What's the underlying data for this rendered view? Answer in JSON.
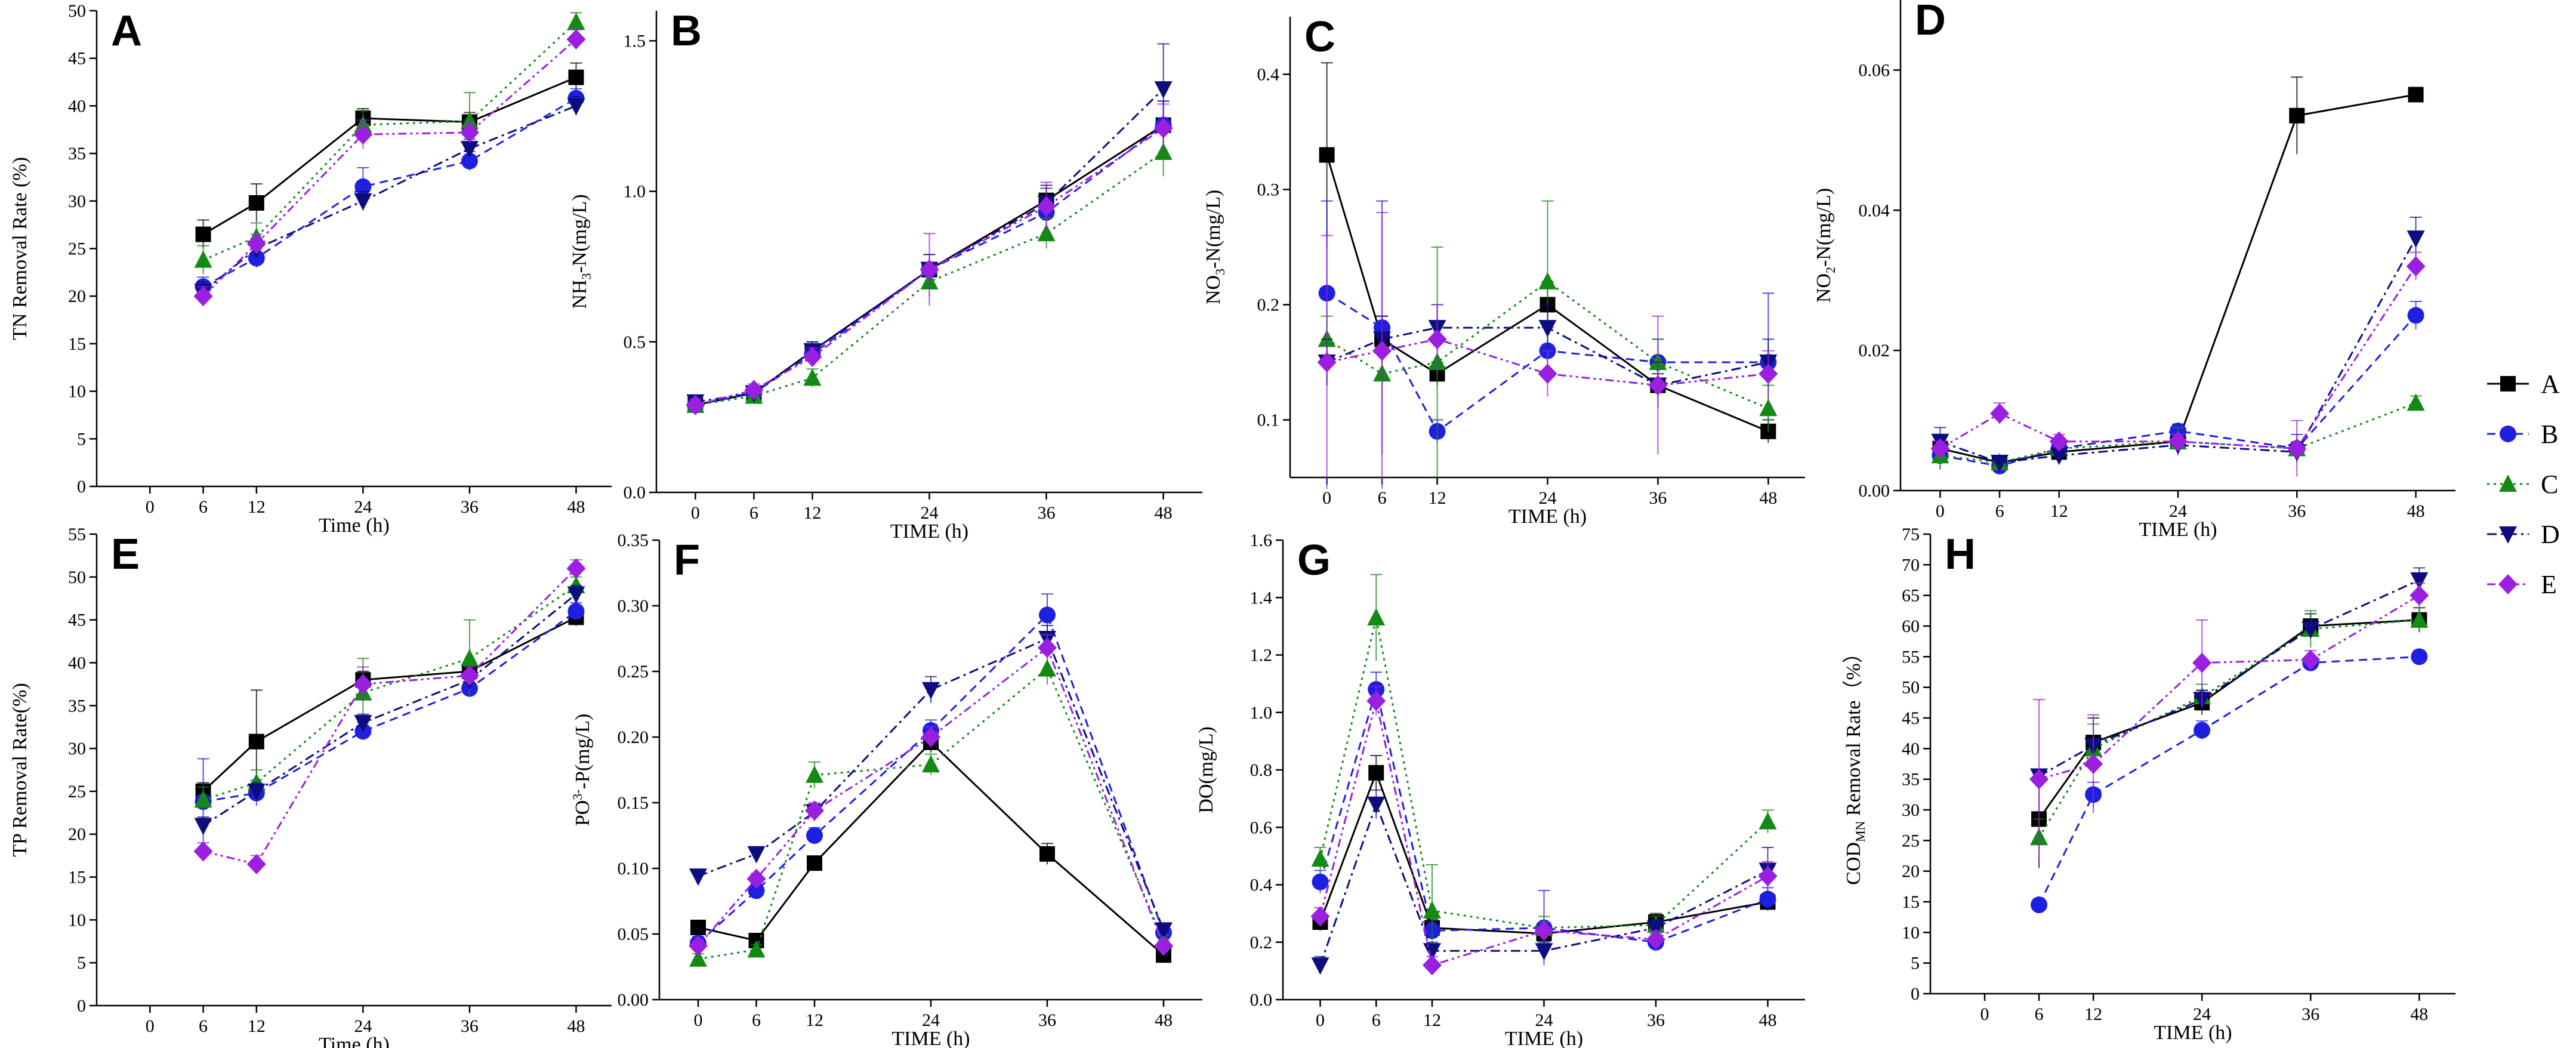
{
  "colors": {
    "A": "#000000",
    "B": "#1f1fe0",
    "C": "#138a13",
    "D": "#0d0d80",
    "E": "#9b1fe0"
  },
  "legend": [
    {
      "key": "A",
      "label": "A",
      "marker": "square",
      "dash": "solid"
    },
    {
      "key": "B",
      "label": "B",
      "marker": "circle",
      "dash": "dash"
    },
    {
      "key": "C",
      "label": "C",
      "marker": "triangle-up",
      "dash": "dot"
    },
    {
      "key": "D",
      "label": "D",
      "marker": "triangle-down",
      "dash": "dashdot"
    },
    {
      "key": "E",
      "label": "E",
      "marker": "diamond",
      "dash": "dashdotdot"
    }
  ],
  "chart_data": [
    {
      "panel": "A",
      "type": "line",
      "xlabel": "Time (h)",
      "ylabel": "TN Removal Rate (%)",
      "xlim": [
        -6,
        52
      ],
      "ylim": [
        0,
        50
      ],
      "xticks": [
        0,
        6,
        12,
        24,
        36,
        48
      ],
      "yticks": [
        "0",
        "5",
        "10",
        "15",
        "20",
        "25",
        "30",
        "35",
        "40",
        "45",
        "50"
      ],
      "ytick_values": [
        0,
        5,
        10,
        15,
        20,
        25,
        30,
        35,
        40,
        45,
        50
      ],
      "x": [
        6,
        12,
        24,
        36,
        48
      ],
      "series": [
        {
          "name": "A",
          "values": [
            26.5,
            29.8,
            38.7,
            38.3,
            43.0
          ],
          "errors": [
            1.5,
            2.0,
            1.0,
            1.0,
            1.5
          ]
        },
        {
          "name": "B",
          "values": [
            21.0,
            24.0,
            31.5,
            34.2,
            40.8
          ],
          "errors": [
            1.0,
            1.0,
            2.0,
            1.0,
            1.0
          ]
        },
        {
          "name": "C",
          "values": [
            23.8,
            26.2,
            38.0,
            38.4,
            48.8
          ],
          "errors": [
            1.5,
            1.5,
            1.5,
            3.0,
            1.0
          ]
        },
        {
          "name": "D",
          "values": [
            20.5,
            25.0,
            30.0,
            35.5,
            40.0
          ],
          "errors": [
            1.0,
            1.0,
            1.0,
            1.0,
            1.0
          ]
        },
        {
          "name": "E",
          "values": [
            20.0,
            25.5,
            37.0,
            37.2,
            47.0
          ],
          "errors": [
            1.0,
            1.0,
            1.5,
            1.0,
            1.0
          ]
        }
      ]
    },
    {
      "panel": "B",
      "type": "line",
      "xlabel": "TIME (h)",
      "ylabel": "NH3-N(mg/L)",
      "ylabel_parts": [
        "NH",
        "3",
        "-N(mg/L)"
      ],
      "xlim": [
        -4,
        52
      ],
      "ylim": [
        0,
        1.6
      ],
      "xticks": [
        0,
        6,
        12,
        24,
        36,
        48
      ],
      "yticks": [
        "0.0",
        "0.5",
        "1.0",
        "1.5"
      ],
      "ytick_values": [
        0,
        0.5,
        1.0,
        1.5
      ],
      "x": [
        0,
        6,
        12,
        24,
        36,
        48
      ],
      "series": [
        {
          "name": "A",
          "values": [
            0.29,
            0.33,
            0.47,
            0.74,
            0.97,
            1.22
          ],
          "errors": [
            0.02,
            0.02,
            0.03,
            0.05,
            0.05,
            0.08
          ]
        },
        {
          "name": "B",
          "values": [
            0.29,
            0.33,
            0.46,
            0.74,
            0.93,
            1.22
          ],
          "errors": [
            0.02,
            0.02,
            0.03,
            0.05,
            0.05,
            0.08
          ]
        },
        {
          "name": "C",
          "values": [
            0.29,
            0.32,
            0.38,
            0.7,
            0.86,
            1.13
          ],
          "errors": [
            0.02,
            0.02,
            0.03,
            0.05,
            0.05,
            0.08
          ]
        },
        {
          "name": "D",
          "values": [
            0.3,
            0.33,
            0.47,
            0.74,
            0.96,
            1.34
          ],
          "errors": [
            0.02,
            0.02,
            0.03,
            0.05,
            0.05,
            0.15
          ]
        },
        {
          "name": "E",
          "values": [
            0.29,
            0.34,
            0.45,
            0.74,
            0.95,
            1.21
          ],
          "errors": [
            0.02,
            0.02,
            0.03,
            0.12,
            0.08,
            0.08
          ]
        }
      ]
    },
    {
      "panel": "C",
      "type": "line",
      "xlabel": "TIME (h)",
      "ylabel": "NO3-N(mg/L)",
      "ylabel_parts": [
        "NO",
        "3",
        "-N(mg/L)"
      ],
      "xlim": [
        -4,
        52
      ],
      "ylim": [
        0.05,
        0.45
      ],
      "xticks": [
        0,
        6,
        12,
        24,
        36,
        48
      ],
      "yticks": [
        "0.1",
        "0.2",
        "0.3",
        "0.4"
      ],
      "ytick_values": [
        0.1,
        0.2,
        0.3,
        0.4
      ],
      "x": [
        0,
        6,
        12,
        24,
        36,
        48
      ],
      "series": [
        {
          "name": "A",
          "values": [
            0.33,
            0.17,
            0.14,
            0.2,
            0.13,
            0.09
          ],
          "errors": [
            0.08,
            0.02,
            0.01,
            0.02,
            0.01,
            0.01
          ]
        },
        {
          "name": "B",
          "values": [
            0.21,
            0.18,
            0.09,
            0.16,
            0.15,
            0.15
          ],
          "errors": [
            0.08,
            0.11,
            0.01,
            0.02,
            0.02,
            0.06
          ]
        },
        {
          "name": "C",
          "values": [
            0.17,
            0.14,
            0.15,
            0.22,
            0.15,
            0.11
          ],
          "errors": [
            0.02,
            0.02,
            0.1,
            0.07,
            0.02,
            0.02
          ]
        },
        {
          "name": "D",
          "values": [
            0.15,
            0.17,
            0.18,
            0.18,
            0.13,
            0.15
          ],
          "errors": [
            0.02,
            0.02,
            0.02,
            0.02,
            0.02,
            0.02
          ]
        },
        {
          "name": "E",
          "values": [
            0.15,
            0.16,
            0.17,
            0.14,
            0.13,
            0.14
          ],
          "errors": [
            0.11,
            0.12,
            0.03,
            0.02,
            0.06,
            0.02
          ]
        }
      ]
    },
    {
      "panel": "D",
      "type": "line",
      "xlabel": "TIME (h)",
      "ylabel": "NO2-N(mg/L)",
      "ylabel_parts": [
        "NO",
        "2",
        "-N(mg/L)"
      ],
      "xlim": [
        -4,
        52
      ],
      "ylim": [
        0,
        0.07
      ],
      "xticks": [
        0,
        6,
        12,
        24,
        36,
        48
      ],
      "yticks": [
        "0.00",
        "0.02",
        "0.04",
        "0.06"
      ],
      "ytick_values": [
        0,
        0.02,
        0.04,
        0.06
      ],
      "x": [
        0,
        6,
        12,
        24,
        36,
        48
      ],
      "series": [
        {
          "name": "A",
          "values": [
            0.006,
            0.004,
            0.0055,
            0.007,
            0.0535,
            0.0565
          ],
          "errors": [
            0.001,
            0.001,
            0.001,
            0.001,
            0.0055,
            0.001
          ]
        },
        {
          "name": "B",
          "values": [
            0.005,
            0.0035,
            0.006,
            0.0085,
            0.006,
            0.025
          ],
          "errors": [
            0.002,
            0.001,
            0.001,
            0.001,
            0.002,
            0.002
          ]
        },
        {
          "name": "C",
          "values": [
            0.005,
            0.004,
            0.006,
            0.007,
            0.006,
            0.0125
          ],
          "errors": [
            0.002,
            0.001,
            0.001,
            0.002,
            0.001,
            0.001
          ]
        },
        {
          "name": "D",
          "values": [
            0.007,
            0.004,
            0.005,
            0.0065,
            0.0055,
            0.036
          ],
          "errors": [
            0.002,
            0.001,
            0.001,
            0.001,
            0.001,
            0.003
          ]
        },
        {
          "name": "E",
          "values": [
            0.006,
            0.011,
            0.007,
            0.007,
            0.006,
            0.032
          ],
          "errors": [
            0.001,
            0.0015,
            0.001,
            0.001,
            0.004,
            0.002
          ]
        }
      ]
    },
    {
      "panel": "E",
      "type": "line",
      "xlabel": "Time (h)",
      "ylabel": "TP Removal Rate(%)",
      "xlim": [
        -6,
        52
      ],
      "ylim": [
        0,
        55
      ],
      "xticks": [
        0,
        6,
        12,
        24,
        36,
        48
      ],
      "yticks": [
        "0",
        "5",
        "10",
        "15",
        "20",
        "25",
        "30",
        "35",
        "40",
        "45",
        "50",
        "55"
      ],
      "ytick_values": [
        0,
        5,
        10,
        15,
        20,
        25,
        30,
        35,
        40,
        45,
        50,
        55
      ],
      "x": [
        6,
        12,
        24,
        36,
        48
      ],
      "series": [
        {
          "name": "A",
          "values": [
            25.0,
            30.8,
            38.0,
            39.0,
            45.3
          ],
          "errors": [
            1.0,
            6.0,
            1.0,
            1.0,
            1.0
          ]
        },
        {
          "name": "B",
          "values": [
            23.8,
            24.8,
            32.0,
            37.0,
            46.0
          ],
          "errors": [
            5.0,
            1.5,
            1.0,
            1.0,
            1.0
          ]
        },
        {
          "name": "C",
          "values": [
            24.0,
            26.0,
            36.5,
            40.5,
            49.0
          ],
          "errors": [
            1.5,
            1.5,
            4.0,
            4.5,
            1.0
          ]
        },
        {
          "name": "D",
          "values": [
            21.0,
            25.0,
            33.0,
            38.0,
            48.0
          ],
          "errors": [
            1.0,
            1.0,
            1.0,
            1.0,
            1.0
          ]
        },
        {
          "name": "E",
          "values": [
            18.0,
            16.5,
            37.5,
            38.5,
            51.0
          ],
          "errors": [
            1.0,
            1.0,
            2.0,
            1.0,
            1.0
          ]
        }
      ]
    },
    {
      "panel": "F",
      "type": "line",
      "xlabel": "TIME (h)",
      "ylabel": "PO4 3--P(mg/L)",
      "ylabel_parts": [
        "PO",
        "3-",
        "-P(mg/L)"
      ],
      "xlim": [
        -4,
        52
      ],
      "ylim": [
        0,
        0.35
      ],
      "xticks": [
        0,
        6,
        12,
        24,
        36,
        48
      ],
      "yticks": [
        "0.00",
        "0.05",
        "0.10",
        "0.15",
        "0.20",
        "0.25",
        "0.30",
        "0.35"
      ],
      "ytick_values": [
        0,
        0.05,
        0.1,
        0.15,
        0.2,
        0.25,
        0.3,
        0.35
      ],
      "x": [
        0,
        6,
        12,
        24,
        36,
        48
      ],
      "series": [
        {
          "name": "A",
          "values": [
            0.055,
            0.045,
            0.104,
            0.196,
            0.111,
            0.034
          ],
          "errors": [
            0.005,
            0.005,
            0.005,
            0.008,
            0.008,
            0.004
          ]
        },
        {
          "name": "B",
          "values": [
            0.043,
            0.083,
            0.125,
            0.205,
            0.293,
            0.051
          ],
          "errors": [
            0.005,
            0.005,
            0.006,
            0.008,
            0.016,
            0.004
          ]
        },
        {
          "name": "C",
          "values": [
            0.031,
            0.038,
            0.171,
            0.179,
            0.252,
            0.045
          ],
          "errors": [
            0.004,
            0.004,
            0.01,
            0.008,
            0.012,
            0.004
          ]
        },
        {
          "name": "D",
          "values": [
            0.094,
            0.111,
            0.143,
            0.236,
            0.275,
            0.053
          ],
          "errors": [
            0.004,
            0.004,
            0.006,
            0.01,
            0.01,
            0.004
          ]
        },
        {
          "name": "E",
          "values": [
            0.041,
            0.092,
            0.144,
            0.2,
            0.268,
            0.041
          ],
          "errors": [
            0.004,
            0.004,
            0.006,
            0.008,
            0.01,
            0.004
          ]
        }
      ]
    },
    {
      "panel": "G",
      "type": "line",
      "xlabel": "TIME (h)",
      "ylabel": "DO(mg/L)",
      "xlim": [
        -4,
        52
      ],
      "ylim": [
        0,
        1.6
      ],
      "xticks": [
        0,
        6,
        12,
        24,
        36,
        48
      ],
      "yticks": [
        "0.0",
        "0.2",
        "0.4",
        "0.6",
        "0.8",
        "1.0",
        "1.2",
        "1.4",
        "1.6"
      ],
      "ytick_values": [
        0,
        0.2,
        0.4,
        0.6,
        0.8,
        1.0,
        1.2,
        1.4,
        1.6
      ],
      "x": [
        0,
        6,
        12,
        24,
        36,
        48
      ],
      "series": [
        {
          "name": "A",
          "values": [
            0.27,
            0.79,
            0.25,
            0.23,
            0.27,
            0.34
          ],
          "errors": [
            0.03,
            0.06,
            0.03,
            0.03,
            0.03,
            0.03
          ]
        },
        {
          "name": "B",
          "values": [
            0.41,
            1.08,
            0.24,
            0.25,
            0.2,
            0.35
          ],
          "errors": [
            0.04,
            0.06,
            0.03,
            0.13,
            0.03,
            0.04
          ]
        },
        {
          "name": "C",
          "values": [
            0.49,
            1.33,
            0.31,
            0.25,
            0.26,
            0.62
          ],
          "errors": [
            0.04,
            0.15,
            0.16,
            0.04,
            0.03,
            0.04
          ]
        },
        {
          "name": "D",
          "values": [
            0.12,
            0.68,
            0.17,
            0.17,
            0.25,
            0.45
          ],
          "errors": [
            0.03,
            0.05,
            0.03,
            0.03,
            0.03,
            0.08
          ]
        },
        {
          "name": "E",
          "values": [
            0.29,
            1.04,
            0.12,
            0.24,
            0.21,
            0.43
          ],
          "errors": [
            0.03,
            0.05,
            0.03,
            0.03,
            0.03,
            0.05
          ]
        }
      ]
    },
    {
      "panel": "H",
      "type": "line",
      "xlabel": "TIME (h)",
      "ylabel": "CODMN Removal Rate (%)",
      "ylabel_parts": [
        "COD",
        "MN",
        " Removal Rate（%）"
      ],
      "xlim": [
        -6,
        52
      ],
      "ylim": [
        0,
        75
      ],
      "xticks": [
        0,
        6,
        12,
        24,
        36,
        48
      ],
      "yticks": [
        "0",
        "5",
        "10",
        "15",
        "20",
        "25",
        "30",
        "35",
        "40",
        "45",
        "50",
        "55",
        "60",
        "65",
        "70",
        "75"
      ],
      "ytick_values": [
        0,
        5,
        10,
        15,
        20,
        25,
        30,
        35,
        40,
        45,
        50,
        55,
        60,
        65,
        70,
        75
      ],
      "x": [
        6,
        12,
        24,
        36,
        48
      ],
      "series": [
        {
          "name": "A",
          "values": [
            28.5,
            41.0,
            47.5,
            60.0,
            61.0
          ],
          "errors": [
            8.0,
            4.0,
            2.0,
            2.0,
            2.0
          ]
        },
        {
          "name": "B",
          "values": [
            14.5,
            32.5,
            43.0,
            54.0,
            55.0
          ],
          "errors": [
            1.0,
            2.0,
            1.5,
            1.0,
            1.0
          ]
        },
        {
          "name": "C",
          "values": [
            25.5,
            40.0,
            48.5,
            59.5,
            61.0
          ],
          "errors": [
            3.0,
            4.0,
            2.0,
            3.0,
            2.0
          ]
        },
        {
          "name": "D",
          "values": [
            35.5,
            40.5,
            48.0,
            59.5,
            67.5
          ],
          "errors": [
            1.0,
            1.0,
            1.5,
            1.5,
            2.0
          ]
        },
        {
          "name": "E",
          "values": [
            35.0,
            37.5,
            54.0,
            54.5,
            65.0
          ],
          "errors": [
            13.0,
            8.0,
            7.0,
            1.5,
            2.0
          ]
        }
      ]
    }
  ]
}
